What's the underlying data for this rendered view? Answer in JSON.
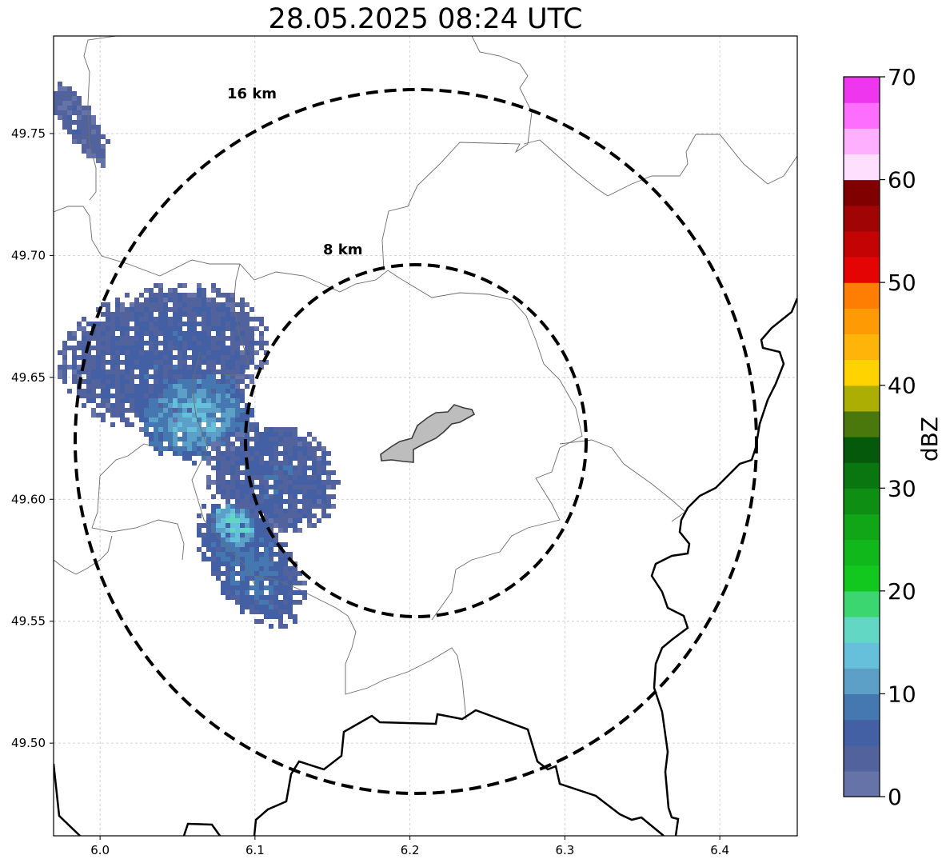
{
  "title": "28.05.2025 08:24 UTC",
  "map": {
    "lon_range": [
      5.97,
      6.45
    ],
    "lat_range": [
      49.462,
      49.79
    ],
    "x_ticks": [
      {
        "value": 6.0,
        "label": "6.0"
      },
      {
        "value": 6.1,
        "label": "6.1"
      },
      {
        "value": 6.2,
        "label": "6.2"
      },
      {
        "value": 6.3,
        "label": "6.3"
      },
      {
        "value": 6.4,
        "label": "6.4"
      }
    ],
    "y_ticks": [
      {
        "value": 49.5,
        "label": "49.50"
      },
      {
        "value": 49.55,
        "label": "49.55"
      },
      {
        "value": 49.6,
        "label": "49.60"
      },
      {
        "value": 49.65,
        "label": "49.65"
      },
      {
        "value": 49.7,
        "label": "49.70"
      },
      {
        "value": 49.75,
        "label": "49.75"
      }
    ],
    "grid": true,
    "radar_center": {
      "lon": 6.203,
      "lat": 49.623
    },
    "rings": [
      {
        "label": "8 km"
      },
      {
        "label": "16 km"
      }
    ],
    "site_polygon_color": "#bdbdbd"
  },
  "colorbar": {
    "label": "dBZ",
    "ticks": [
      {
        "value": 0,
        "label": "0"
      },
      {
        "value": 10,
        "label": "10"
      },
      {
        "value": 20,
        "label": "20"
      },
      {
        "value": 30,
        "label": "30"
      },
      {
        "value": 40,
        "label": "40"
      },
      {
        "value": 50,
        "label": "50"
      },
      {
        "value": 60,
        "label": "60"
      },
      {
        "value": 70,
        "label": "70"
      }
    ],
    "range": [
      0,
      70
    ],
    "step": 2.5,
    "colors": [
      "#6673a8",
      "#51629d",
      "#4260a3",
      "#4577b0",
      "#5ca0c8",
      "#66c0dc",
      "#62d8c4",
      "#3cd670",
      "#12c81e",
      "#10b81c",
      "#10a618",
      "#0e8e12",
      "#0a7610",
      "#045a0a",
      "#4a780c",
      "#acae04",
      "#fed300",
      "#feb408",
      "#fe9a04",
      "#fe7e04",
      "#e40404",
      "#c40404",
      "#a00404",
      "#800000",
      "#fee0fe",
      "#feb0fe",
      "#fe6efe",
      "#ee36ee"
    ]
  },
  "reflectivity_clusters": [
    {
      "lon": 5.985,
      "lat": 49.755,
      "rx": 0.012,
      "ry": 0.02,
      "dbz": 4
    },
    {
      "lon": 6.04,
      "lat": 49.66,
      "rx": 0.075,
      "ry": 0.03,
      "dbz": 6
    },
    {
      "lon": 6.06,
      "lat": 49.635,
      "rx": 0.04,
      "ry": 0.02,
      "dbz": 12
    },
    {
      "lon": 6.11,
      "lat": 49.61,
      "rx": 0.045,
      "ry": 0.025,
      "dbz": 6
    },
    {
      "lon": 6.095,
      "lat": 49.575,
      "rx": 0.03,
      "ry": 0.03,
      "dbz": 8
    },
    {
      "lon": 6.085,
      "lat": 49.59,
      "rx": 0.015,
      "ry": 0.01,
      "dbz": 16
    }
  ]
}
